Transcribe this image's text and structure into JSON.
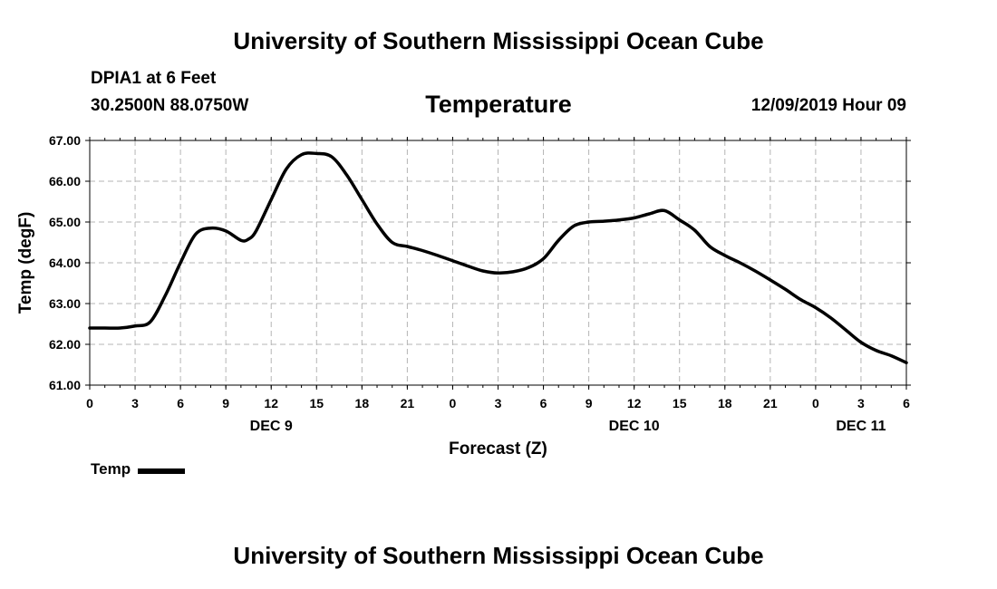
{
  "header": {
    "top_title": "University of Southern Mississippi Ocean Cube",
    "bottom_title": "University of Southern Mississippi Ocean Cube",
    "station": "DPIA1 at 6 Feet",
    "coords": "30.2500N 88.0750W",
    "datetime": "12/09/2019 Hour 09"
  },
  "legend": {
    "label": "Temp"
  },
  "colors": {
    "line": "#000000",
    "grid": "#b4b4b4"
  },
  "chart_data": {
    "type": "line",
    "title": "Temperature",
    "xlabel": "Forecast (Z)",
    "ylabel": "Temp (degF)",
    "xlim": [
      0,
      54
    ],
    "ylim": [
      61.0,
      67.0
    ],
    "grid": true,
    "legend_position": "bottom-left",
    "x_ticks": [
      0,
      3,
      6,
      9,
      12,
      15,
      18,
      21,
      24,
      27,
      30,
      33,
      36,
      39,
      42,
      45,
      48,
      51,
      54
    ],
    "x_tick_labels": [
      "0",
      "3",
      "6",
      "9",
      "12",
      "15",
      "18",
      "21",
      "0",
      "3",
      "6",
      "9",
      "12",
      "15",
      "18",
      "21",
      "0",
      "3",
      "6"
    ],
    "y_ticks": [
      61.0,
      62.0,
      63.0,
      64.0,
      65.0,
      66.0,
      67.0
    ],
    "y_tick_labels": [
      "61.00",
      "62.00",
      "63.00",
      "64.00",
      "65.00",
      "66.00",
      "67.00"
    ],
    "date_labels": [
      {
        "x": 12,
        "label": "DEC 9"
      },
      {
        "x": 36,
        "label": "DEC 10"
      },
      {
        "x": 51,
        "label": "DEC 11"
      }
    ],
    "series": [
      {
        "name": "Temp",
        "x": [
          0,
          1,
          2,
          3,
          4,
          5,
          6,
          7,
          8,
          9,
          10,
          10.5,
          11,
          12,
          13,
          14,
          15,
          16,
          17,
          18,
          19,
          20,
          21,
          22,
          23,
          24,
          25,
          26,
          27,
          28,
          29,
          30,
          31,
          32,
          33,
          34,
          35,
          36,
          37,
          38,
          39,
          40,
          41,
          42,
          43,
          44,
          45,
          46,
          47,
          48,
          49,
          50,
          51,
          52,
          53,
          54
        ],
        "y": [
          62.4,
          62.4,
          62.4,
          62.45,
          62.55,
          63.2,
          64.0,
          64.7,
          64.85,
          64.78,
          64.55,
          64.58,
          64.78,
          65.55,
          66.3,
          66.65,
          66.68,
          66.6,
          66.15,
          65.55,
          64.95,
          64.5,
          64.4,
          64.3,
          64.18,
          64.05,
          63.92,
          63.8,
          63.75,
          63.78,
          63.88,
          64.1,
          64.55,
          64.9,
          65.0,
          65.02,
          65.05,
          65.1,
          65.2,
          65.28,
          65.05,
          64.8,
          64.4,
          64.18,
          64.0,
          63.8,
          63.58,
          63.35,
          63.1,
          62.9,
          62.65,
          62.35,
          62.05,
          61.85,
          61.72,
          61.55
        ]
      }
    ]
  }
}
